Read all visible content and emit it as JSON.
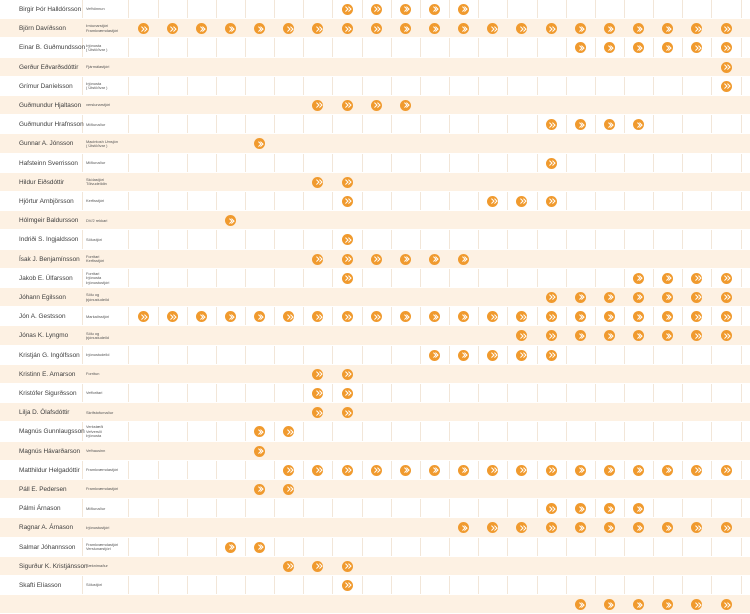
{
  "theme": {
    "accent": "#f09a2e",
    "row_alt": "#fdf1e3",
    "grid_line": "#f2e6d8"
  },
  "marker_icon": "double-chevron-right-icon",
  "column_count": 21,
  "rows": [
    {
      "name": "Birgir Þór Halldórsson",
      "role": "Vefhönnun",
      "marks": [
        7,
        8,
        9,
        10,
        11
      ]
    },
    {
      "name": "Björn Davíðsson",
      "role": "Þróunarstjóri\nFramkvæmdastjóri",
      "marks": [
        0,
        1,
        2,
        3,
        4,
        5,
        6,
        7,
        8,
        9,
        10,
        11,
        12,
        13,
        14,
        15,
        16,
        17,
        18,
        19,
        20
      ]
    },
    {
      "name": "Einar B. Guðmundsson",
      "role": "Þjónusta\n( Útstöðvar )",
      "marks": [
        15,
        16,
        17,
        18,
        19,
        20
      ]
    },
    {
      "name": "Gerður Eðvarðsdóttir",
      "role": "Fjármálastjóri",
      "marks": [
        20
      ]
    },
    {
      "name": "Grímur Daníelsson",
      "role": "Þjónusta\n( Útstöðvar )",
      "marks": [
        20
      ]
    },
    {
      "name": "Guðmundur Hjaltason",
      "role": "verslunarstjóri",
      "marks": [
        6,
        7,
        8,
        9
      ]
    },
    {
      "name": "Guðmundur Hrafnsson",
      "role": "Miðlunaður",
      "marks": [
        14,
        15,
        16,
        17
      ]
    },
    {
      "name": "Gunnar A. Jónsson",
      "role": "Macintosh Umsjón\n( Útstöðvar )",
      "marks": [
        4
      ]
    },
    {
      "name": "Hafsteinn Sverrisson",
      "role": "Miðlunaður",
      "marks": [
        14
      ]
    },
    {
      "name": "Hildur Eiðsdóttir",
      "role": "Skólastjóri\nTölvudeildin",
      "marks": [
        6,
        7
      ]
    },
    {
      "name": "Hjörtur Arnbjörsson",
      "role": "Kerfisstjóri",
      "marks": [
        7,
        12,
        13,
        14
      ]
    },
    {
      "name": "Hólmgeir Baldursson",
      "role": "DV/2 rekkari",
      "marks": [
        3
      ]
    },
    {
      "name": "Indriði S. Ingjaldsson",
      "role": "Sölustjóri",
      "marks": [
        7
      ]
    },
    {
      "name": "Ísak J. Benjamínsson",
      "role": "Forritari\nKerfisstjóri",
      "marks": [
        6,
        7,
        8,
        9,
        10,
        11
      ]
    },
    {
      "name": "Jakob E. Úlfarsson",
      "role": "Forritari\nÞjónusta\nÞjónustustjóri",
      "marks": [
        7,
        17,
        18,
        19,
        20
      ]
    },
    {
      "name": "Jóhann Egilsson",
      "role": "Sölu og\nþjónustudeild",
      "marks": [
        14,
        15,
        16,
        17,
        18,
        19,
        20
      ]
    },
    {
      "name": "Jón A. Gestsson",
      "role": "Markaðsstjóri",
      "marks": [
        0,
        1,
        2,
        3,
        4,
        5,
        6,
        7,
        8,
        9,
        10,
        11,
        12,
        13,
        14,
        15,
        16,
        17,
        18,
        19,
        20
      ]
    },
    {
      "name": "Jónas K. Lyngmo",
      "role": "Sölu og\nþjónustudeild",
      "marks": [
        13,
        14,
        15,
        16,
        17,
        18,
        19,
        20
      ]
    },
    {
      "name": "Kristján G. Ingólfsson",
      "role": "Þjónustudeild",
      "marks": [
        10,
        11,
        12,
        13,
        14
      ]
    },
    {
      "name": "Kristinn E. Arnarson",
      "role": "Forritun",
      "marks": [
        6,
        7
      ]
    },
    {
      "name": "Kristófer Sigurðsson",
      "role": "Vefforitari",
      "marks": [
        6,
        7
      ]
    },
    {
      "name": "Lilja D. Ólafsdóttir",
      "role": "Skrifstofumaður",
      "marks": [
        6,
        7
      ]
    },
    {
      "name": "Magnús Gunnlaugsson",
      "role": "Verkstæði\nVefverslii\nÞjónusta",
      "marks": [
        4,
        5
      ]
    },
    {
      "name": "Magnús Hávarðarson",
      "role": "Vefhausinn",
      "marks": [
        4
      ]
    },
    {
      "name": "Matthildur Helgadóttir",
      "role": "Framkvæmdastjóri",
      "marks": [
        5,
        6,
        7,
        8,
        9,
        10,
        11,
        12,
        13,
        14,
        15,
        16,
        17,
        18,
        19,
        20
      ]
    },
    {
      "name": "Páll E. Pedersen",
      "role": "Framkvæmdastjóri",
      "marks": [
        4,
        5
      ]
    },
    {
      "name": "Pálmi Árnason",
      "role": "Miðlunaður",
      "marks": [
        14,
        15,
        16,
        17
      ]
    },
    {
      "name": "Ragnar A. Árnason",
      "role": "Þjónustustjóri",
      "marks": [
        11,
        12,
        13,
        14,
        15,
        16,
        17,
        18,
        19,
        20
      ]
    },
    {
      "name": "Salmar Jóhannsson",
      "role": "Framkvæmdastjóri\nVerslunarstjóri",
      "marks": [
        3,
        4
      ]
    },
    {
      "name": "Sigurður K. Kristjánsson",
      "role": "Tæknimaður",
      "marks": [
        5,
        6,
        7
      ]
    },
    {
      "name": "Skafti Elíasson",
      "role": "Sölustjóri",
      "marks": [
        7
      ]
    },
    {
      "name": "",
      "role": "",
      "marks": [
        15,
        16,
        17,
        18,
        19,
        20
      ]
    }
  ]
}
